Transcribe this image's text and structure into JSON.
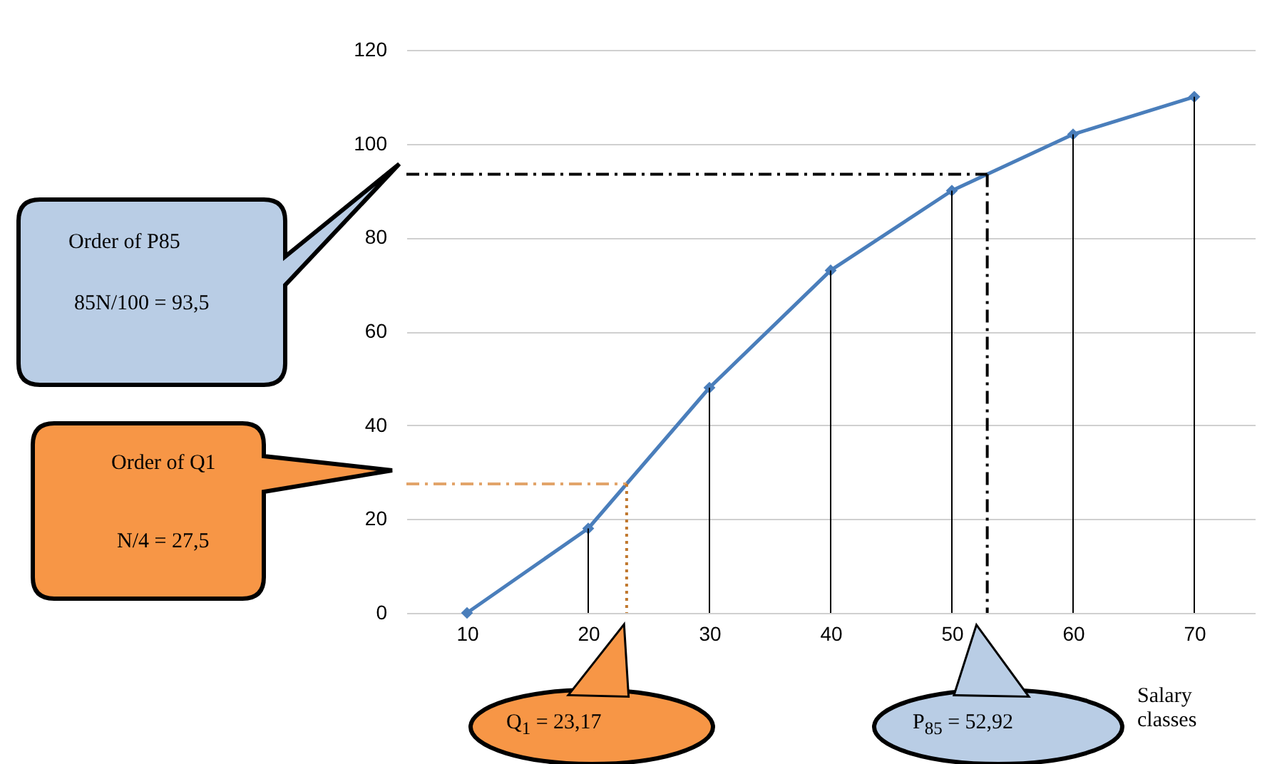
{
  "chart_data": {
    "type": "line",
    "xlabel": "Salary classes",
    "x": [
      10,
      20,
      30,
      40,
      50,
      60,
      70
    ],
    "series": [
      {
        "color": "#4a7ebb",
        "values": [
          0,
          18,
          48,
          73,
          90,
          102,
          110
        ],
        "marker": "diamond"
      },
      {
        "type": "line",
        "color": "#000000",
        "line_style": "dashed",
        "x": [
          5,
          52.92
        ],
        "values": [
          93.5,
          93.5
        ]
      },
      {
        "type": "line",
        "color": "#000000",
        "line_style": "dashed",
        "x": [
          52.92,
          52.92
        ],
        "values": [
          93.5,
          0
        ]
      },
      {
        "type": "line",
        "color": "#e2a46a",
        "line_style": "dashed",
        "x": [
          5,
          23.17
        ],
        "values": [
          27.5,
          27.5
        ]
      },
      {
        "type": "line",
        "color": "#c0782e",
        "line_style": "dotted",
        "x": [
          23.17,
          23.17
        ],
        "values": [
          27.5,
          0
        ]
      }
    ],
    "xlim": [
      5,
      75
    ],
    "xticks": [
      10,
      20,
      30,
      40,
      50,
      60,
      70
    ],
    "ylim": [
      0,
      120
    ],
    "yticks": [
      0,
      20,
      40,
      60,
      80,
      100,
      120
    ],
    "grid": "y",
    "ref_lines": [
      {
        "axis": "x",
        "value": 20,
        "color": "#000000"
      },
      {
        "axis": "x",
        "value": 30,
        "color": "#000000"
      },
      {
        "axis": "x",
        "value": 40,
        "color": "#000000"
      },
      {
        "axis": "x",
        "value": 50,
        "color": "#000000"
      },
      {
        "axis": "x",
        "value": 60,
        "color": "#000000"
      },
      {
        "axis": "x",
        "value": 70,
        "color": "#000000"
      }
    ],
    "annotations": [
      "Order of P85",
      "85N/100 = 93,5",
      "Order of Q1",
      "N/4 = 27,5",
      "Q$_{1}$ = 23,17",
      "P$_{85}$ = 52,92"
    ]
  }
}
